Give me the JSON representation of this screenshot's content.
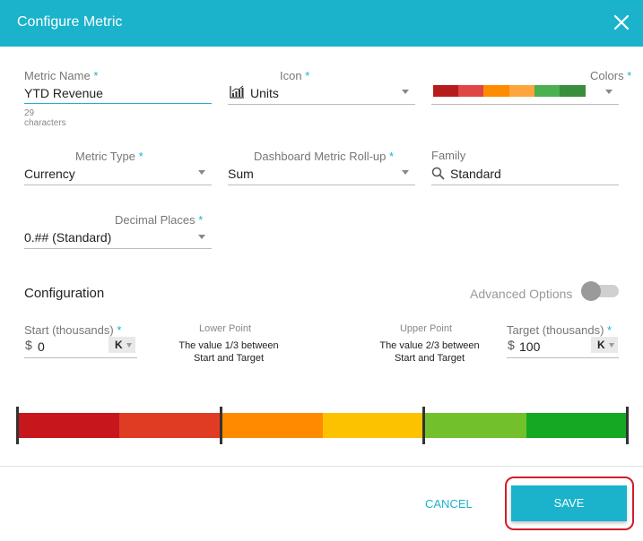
{
  "dialog": {
    "title": "Configure Metric"
  },
  "metric_name": {
    "label": "Metric Name",
    "required": "*",
    "value": "YTD Revenue",
    "hint": "29 characters"
  },
  "icon_field": {
    "label": "Icon",
    "required": "*",
    "value": "Units",
    "icon": "bar-chart-icon"
  },
  "colors_field": {
    "label": "Colors",
    "required": "*",
    "swatches": [
      "#b71c1c",
      "#e04646",
      "#ff8c00",
      "#ffa53d",
      "#4caf50",
      "#388e3c"
    ]
  },
  "metric_type": {
    "label": "Metric Type",
    "required": "*",
    "value": "Currency"
  },
  "rollup": {
    "label": "Dashboard Metric Roll-up",
    "required": "*",
    "value": "Sum"
  },
  "family": {
    "label": "Family",
    "value": "Standard",
    "icon": "search-icon"
  },
  "decimal_places": {
    "label": "Decimal Places",
    "required": "*",
    "value": "0.## (Standard)"
  },
  "configuration": {
    "title": "Configuration",
    "advanced_label": "Advanced Options",
    "advanced_enabled": false,
    "start": {
      "label": "Start (thousands)",
      "required": "*",
      "prefix": "$",
      "value": "0",
      "unit": "K"
    },
    "lower_point": {
      "title": "Lower Point",
      "desc_line1": "The value 1/3 between",
      "desc_line2": "Start and Target"
    },
    "upper_point": {
      "title": "Upper Point",
      "desc_line1": "The value 2/3 between",
      "desc_line2": "Start and Target"
    },
    "target": {
      "label": "Target (thousands)",
      "required": "*",
      "prefix": "$",
      "value": "100",
      "unit": "K"
    },
    "gradient_colors": [
      "#c8161d",
      "#e03c23",
      "#ff8a00",
      "#fcc200",
      "#72c12c",
      "#14a823"
    ]
  },
  "footer": {
    "cancel_label": "CANCEL",
    "save_label": "SAVE"
  },
  "accent_color": "#1bb2cc"
}
